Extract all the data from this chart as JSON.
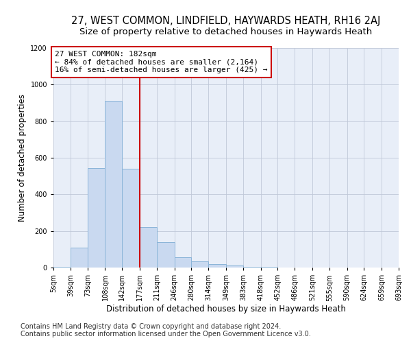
{
  "title": "27, WEST COMMON, LINDFIELD, HAYWARDS HEATH, RH16 2AJ",
  "subtitle": "Size of property relative to detached houses in Haywards Heath",
  "xlabel": "Distribution of detached houses by size in Haywards Heath",
  "ylabel": "Number of detached properties",
  "footnote1": "Contains HM Land Registry data © Crown copyright and database right 2024.",
  "footnote2": "Contains public sector information licensed under the Open Government Licence v3.0.",
  "bin_labels": [
    "5sqm",
    "39sqm",
    "73sqm",
    "108sqm",
    "142sqm",
    "177sqm",
    "211sqm",
    "246sqm",
    "280sqm",
    "314sqm",
    "349sqm",
    "383sqm",
    "418sqm",
    "452sqm",
    "486sqm",
    "521sqm",
    "555sqm",
    "590sqm",
    "624sqm",
    "659sqm",
    "693sqm"
  ],
  "bar_heights": [
    5,
    110,
    545,
    910,
    540,
    220,
    140,
    55,
    35,
    20,
    10,
    5,
    2,
    0,
    0,
    0,
    0,
    0,
    0,
    0
  ],
  "bin_edges": [
    5,
    39,
    73,
    108,
    142,
    177,
    211,
    246,
    280,
    314,
    349,
    383,
    418,
    452,
    486,
    521,
    555,
    590,
    624,
    659,
    693
  ],
  "vline_x": 177,
  "vline_color": "#cc0000",
  "bar_facecolor": "#c9d9f0",
  "bar_edgecolor": "#8ab4d8",
  "annotation_text": "27 WEST COMMON: 182sqm\n← 84% of detached houses are smaller (2,164)\n16% of semi-detached houses are larger (425) →",
  "annotation_box_color": "white",
  "annotation_box_edgecolor": "#cc0000",
  "ylim": [
    0,
    1200
  ],
  "yticks": [
    0,
    200,
    400,
    600,
    800,
    1000,
    1200
  ],
  "bg_color": "#e8eef8",
  "title_fontsize": 10.5,
  "subtitle_fontsize": 9.5,
  "annot_fontsize": 8,
  "xlabel_fontsize": 8.5,
  "ylabel_fontsize": 8.5,
  "tick_fontsize": 7,
  "footnote_fontsize": 7
}
